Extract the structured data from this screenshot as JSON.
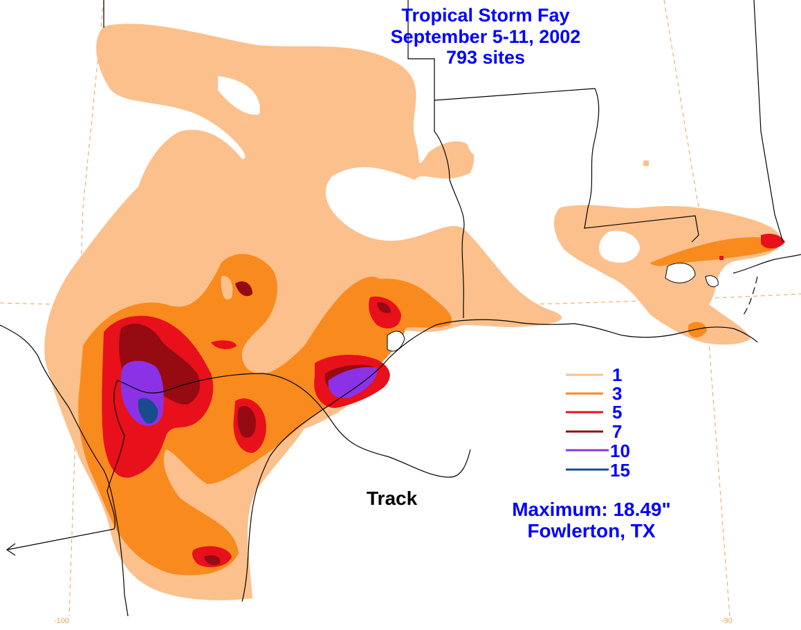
{
  "title": {
    "line1": "Tropical Storm Fay",
    "line2": "September 5-11, 2002",
    "line3": "793 sites"
  },
  "legend": [
    {
      "label": "1",
      "color": "#FCC08C"
    },
    {
      "label": "3",
      "color": "#F98A1E"
    },
    {
      "label": "5",
      "color": "#E8101A"
    },
    {
      "label": "7",
      "color": "#960A12"
    },
    {
      "label": "10",
      "color": "#8C32E6"
    },
    {
      "label": "15",
      "color": "#184C8C"
    }
  ],
  "maximum": {
    "line1": "Maximum:  18.49\"",
    "line2": "Fowlerton, TX"
  },
  "track_label": "Track",
  "longitude_labels": {
    "left": "-100",
    "right": "-90"
  },
  "colors": {
    "text": "#0000FF",
    "grid": "#E8A050",
    "border": "#000000"
  }
}
